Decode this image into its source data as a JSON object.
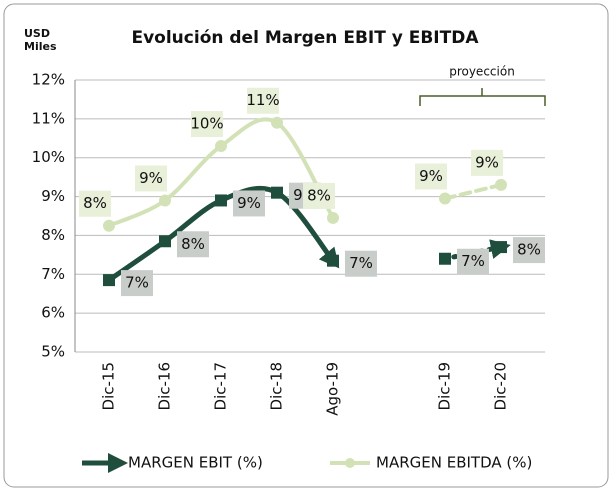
{
  "chart_data": {
    "type": "line",
    "title": "Evolución del Margen EBIT y EBITDA",
    "unit_label": [
      "USD",
      "Miles"
    ],
    "annotation": "proyección",
    "categories": [
      "Dic-15",
      "Dic-16",
      "Dic-17",
      "Dic-18",
      "Ago-19",
      null,
      "Dic-19",
      "Dic-20"
    ],
    "series": [
      {
        "name": "MARGEN EBIT (%)",
        "color": "#1f4e3d",
        "values": [
          6.85,
          7.85,
          8.9,
          9.1,
          7.35,
          null,
          7.4,
          7.7
        ],
        "value_labels": [
          "7%",
          "8%",
          "9%",
          "9%",
          "7%",
          null,
          "7%",
          "8%"
        ]
      },
      {
        "name": "MARGEN EBITDA (%)",
        "color": "#d3e2b6",
        "values": [
          8.25,
          8.9,
          10.3,
          10.9,
          8.45,
          null,
          8.95,
          9.3
        ],
        "value_labels": [
          "8%",
          "9%",
          "10%",
          "11%",
          "8%",
          null,
          "9%",
          "9%"
        ]
      }
    ],
    "ylim": [
      5,
      12
    ],
    "yticks": [
      {
        "value": 5,
        "label": "5%"
      },
      {
        "value": 6,
        "label": "6%"
      },
      {
        "value": 7,
        "label": "7%"
      },
      {
        "value": 8,
        "label": "8%"
      },
      {
        "value": 9,
        "label": "9%"
      },
      {
        "value": 10,
        "label": "10%"
      },
      {
        "value": 11,
        "label": "11%"
      },
      {
        "value": 12,
        "label": "12%"
      }
    ],
    "grid": true
  }
}
